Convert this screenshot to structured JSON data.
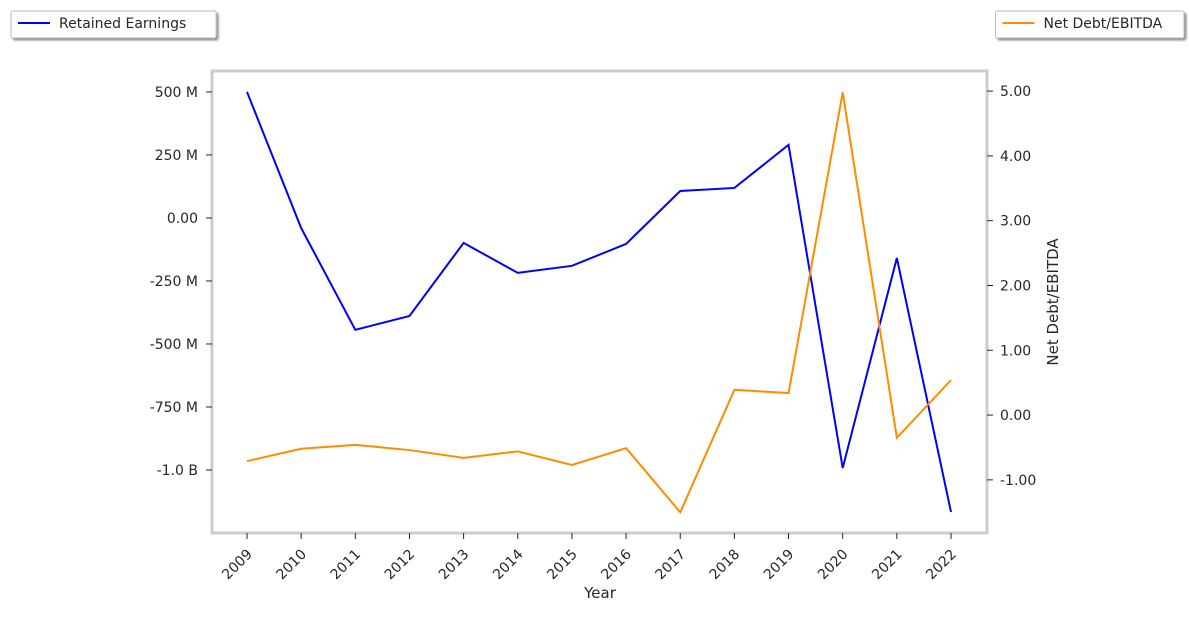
{
  "chart_data": {
    "type": "line",
    "xlabel": "Year",
    "y2label": "Net Debt/EBITDA",
    "categories": [
      "2009",
      "2010",
      "2011",
      "2012",
      "2013",
      "2014",
      "2015",
      "2016",
      "2017",
      "2018",
      "2019",
      "2020",
      "2021",
      "2022"
    ],
    "series": [
      {
        "name": "Retained Earnings",
        "color": "#0000ff",
        "axis": "y",
        "legend_loc": "upper left",
        "values": [
          500000000,
          -40000000,
          -444000000,
          -389000000,
          -99000000,
          -218000000,
          -190000000,
          -103000000,
          107000000,
          119000000,
          290000000,
          -992000000,
          -159000000,
          -1167000000
        ]
      },
      {
        "name": "Net Debt/EBITDA",
        "color": "#ff8c00",
        "axis": "y2",
        "legend_loc": "upper right",
        "values": [
          -0.71,
          -0.52,
          -0.46,
          -0.54,
          -0.66,
          -0.56,
          -0.77,
          -0.51,
          -1.5,
          0.39,
          0.34,
          4.98,
          -0.35,
          0.54
        ]
      }
    ],
    "ylim": [
      -1250000000,
      583000000
    ],
    "yticks": [
      {
        "value": 500000000,
        "label": "500 M"
      },
      {
        "value": 250000000,
        "label": "250 M"
      },
      {
        "value": 0,
        "label": "0.00"
      },
      {
        "value": -250000000,
        "label": "-250 M"
      },
      {
        "value": -500000000,
        "label": "-500 M"
      },
      {
        "value": -750000000,
        "label": "-750 M"
      },
      {
        "value": -1000000000,
        "label": "-1.0 B"
      }
    ],
    "y2lim": [
      -1.82,
      5.31
    ],
    "y2ticks": [
      {
        "value": 5,
        "label": "5.00"
      },
      {
        "value": 4,
        "label": "4.00"
      },
      {
        "value": 3,
        "label": "3.00"
      },
      {
        "value": 2,
        "label": "2.00"
      },
      {
        "value": 1,
        "label": "1.00"
      },
      {
        "value": 0,
        "label": "0.00"
      },
      {
        "value": -1,
        "label": "-1.00"
      }
    ],
    "grid": false
  }
}
